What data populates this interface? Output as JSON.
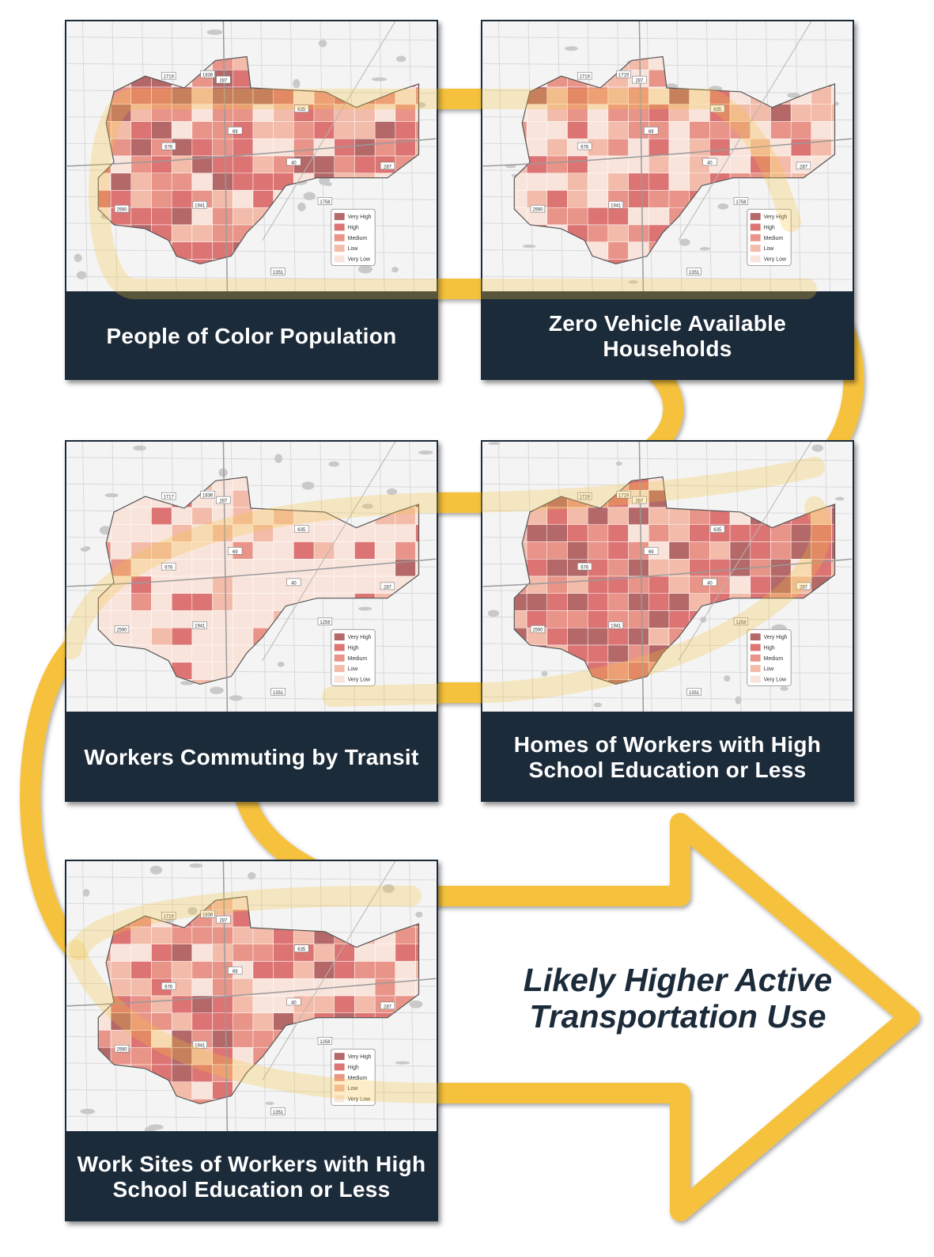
{
  "colors": {
    "ribbon": "#f6c23e",
    "caption_bg": "#1c2b3a",
    "caption_text": "#ffffff",
    "result_text": "#1c2b3a",
    "very_high": "#b46868",
    "high": "#dd7474",
    "medium": "#e99488",
    "low": "#f3bba9",
    "very_low": "#f9e4dc"
  },
  "legend_labels": [
    "Very High",
    "High",
    "Medium",
    "Low",
    "Very Low"
  ],
  "panels": [
    {
      "id": "poc",
      "caption": "People of Color Population",
      "route_labels": [
        "1719",
        "1836",
        "287",
        "635",
        "676",
        "69",
        "40",
        "287",
        "1758",
        "1941",
        "2590",
        "1351"
      ]
    },
    {
      "id": "zero-vehicle",
      "caption": "Zero Vehicle Available Households",
      "route_labels": [
        "1719",
        "1719",
        "287",
        "635",
        "676",
        "69",
        "40",
        "287",
        "1758",
        "1941",
        "2590",
        "1351"
      ]
    },
    {
      "id": "transit",
      "caption": "Workers Commuting by Transit",
      "route_labels": [
        "1717",
        "1836",
        "287",
        "635",
        "676",
        "69",
        "40",
        "287",
        "1258",
        "1941",
        "2590",
        "1351"
      ]
    },
    {
      "id": "homes-hs",
      "caption": "Homes of Workers with High School Education or Less",
      "route_labels": [
        "1719",
        "1719",
        "287",
        "635",
        "676",
        "69",
        "40",
        "287",
        "1258",
        "1941",
        "2590",
        "1351"
      ]
    },
    {
      "id": "worksites-hs",
      "caption": "Work Sites of Workers with High School Education or Less",
      "route_labels": [
        "1719",
        "1836",
        "287",
        "635",
        "676",
        "69",
        "40",
        "287",
        "1258",
        "1941",
        "2590",
        "1351"
      ]
    }
  ],
  "result": {
    "line1": "Likely Higher Active",
    "line2": "Transportation Use"
  }
}
